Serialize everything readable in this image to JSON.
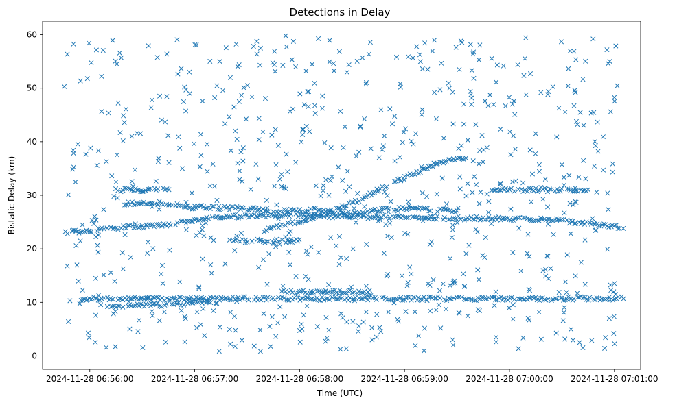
{
  "chart_data": {
    "type": "scatter",
    "title": "Detections in Delay",
    "xlabel": "Time (UTC)",
    "ylabel": "Bistatic Delay (km)",
    "marker": "x",
    "color": "#1f77b4",
    "grid": false,
    "x_tick_labels": [
      "2024-11-28 06:56:00",
      "2024-11-28 06:57:00",
      "2024-11-28 06:58:00",
      "2024-11-28 06:59:00",
      "2024-11-28 07:00:00",
      "2024-11-28 07:01:00"
    ],
    "x_tick_values_s": [
      0,
      60,
      120,
      180,
      240,
      300
    ],
    "y_ticks": [
      0,
      10,
      20,
      30,
      40,
      50,
      60
    ],
    "xlim_s": [
      -27,
      315
    ],
    "ylim": [
      -2.5,
      62.5
    ],
    "tracks": [
      {
        "name": "track-1",
        "points": [
          [
            -14,
            23
          ],
          [
            20,
            24
          ],
          [
            45,
            24.5
          ],
          [
            70,
            26
          ],
          [
            115,
            26.3
          ],
          [
            150,
            26
          ],
          [
            200,
            25.8
          ],
          [
            260,
            25.5
          ],
          [
            305,
            24
          ]
        ]
      },
      {
        "name": "track-2",
        "points": [
          [
            20,
            28.5
          ],
          [
            40,
            28.5
          ],
          [
            60,
            27.8
          ],
          [
            90,
            27.5
          ],
          [
            110,
            27
          ],
          [
            130,
            27.3
          ],
          [
            150,
            26.5
          ],
          [
            170,
            27.4
          ],
          [
            190,
            27.5
          ],
          [
            210,
            27
          ]
        ]
      },
      {
        "name": "track-3",
        "points": [
          [
            100,
            23.5
          ],
          [
            125,
            25.5
          ],
          [
            150,
            28.5
          ],
          [
            165,
            31
          ],
          [
            185,
            34
          ],
          [
            200,
            36.2
          ],
          [
            215,
            37
          ]
        ]
      },
      {
        "name": "track-4",
        "points": [
          [
            -5,
            10.7
          ],
          [
            305,
            10.7
          ]
        ]
      },
      {
        "name": "track-5",
        "points": [
          [
            10,
            9.3
          ],
          [
            40,
            9.5
          ],
          [
            70,
            10.2
          ]
        ]
      },
      {
        "name": "track-6",
        "points": [
          [
            110,
            12
          ],
          [
            160,
            12
          ]
        ]
      },
      {
        "name": "track-7",
        "points": [
          [
            15,
            31
          ],
          [
            45,
            31
          ]
        ]
      },
      {
        "name": "track-8",
        "points": [
          [
            230,
            31
          ],
          [
            285,
            31
          ]
        ]
      },
      {
        "name": "track-9",
        "points": [
          [
            80,
            21.5
          ],
          [
            120,
            21.5
          ]
        ]
      }
    ],
    "clutter": {
      "count": 750,
      "y_range": [
        0.8,
        60
      ],
      "x_range_s": [
        -15,
        302
      ]
    }
  }
}
